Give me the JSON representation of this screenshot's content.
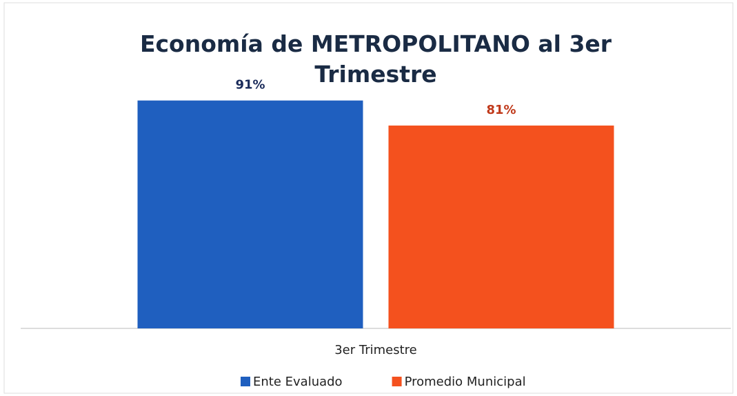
{
  "chart_data": {
    "type": "bar",
    "title": "Economía de METROPOLITANO al 3er Trimestre",
    "categories": [
      "3er Trimestre"
    ],
    "series": [
      {
        "name": "Ente Evaluado",
        "color": "#1f5fbf",
        "label_color": "#1a2b5a",
        "values": [
          91
        ],
        "value_labels": [
          "91%"
        ]
      },
      {
        "name": "Promedio Municipal",
        "color": "#f4511e",
        "label_color": "#c0391a",
        "values": [
          81
        ],
        "value_labels": [
          "81%"
        ]
      }
    ],
    "ylim": [
      0,
      100
    ],
    "legend": "bottom"
  }
}
